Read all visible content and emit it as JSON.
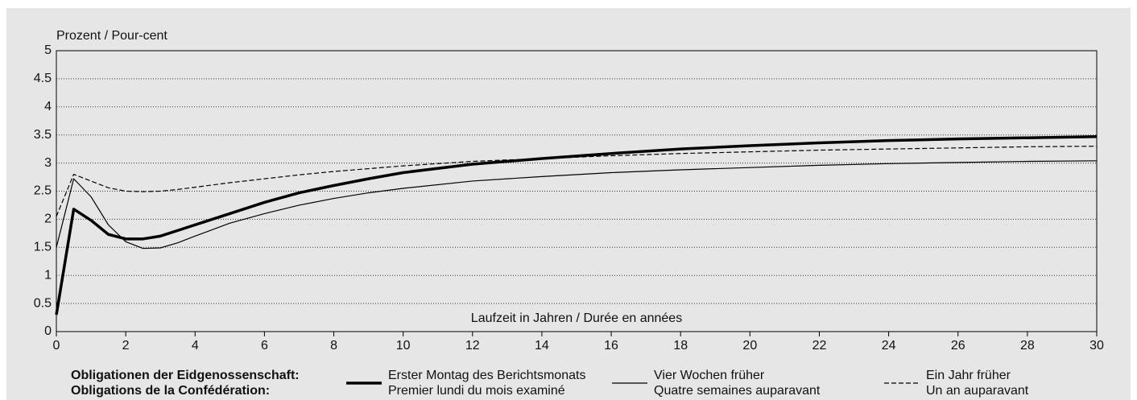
{
  "chart_data": {
    "type": "line",
    "ylabel": "Prozent / Pour-cent",
    "xlabel": "Laufzeit in Jahren / Durée en années",
    "xlim": [
      0,
      30
    ],
    "xticks": [
      0,
      2,
      4,
      6,
      8,
      10,
      12,
      14,
      16,
      18,
      20,
      22,
      24,
      26,
      28,
      30
    ],
    "ylim": [
      0,
      5
    ],
    "yticks": [
      0,
      0.5,
      1,
      1.5,
      2,
      2.5,
      3,
      3.5,
      4,
      4.5,
      5
    ],
    "grid": true,
    "legend_title": [
      "Obligationen der Eidgenossenschaft:",
      "Obligations de la Confédération:"
    ],
    "x": [
      0,
      0.5,
      1,
      1.5,
      2,
      2.5,
      3,
      3.5,
      4,
      5,
      6,
      7,
      8,
      9,
      10,
      12,
      14,
      16,
      18,
      20,
      22,
      24,
      26,
      28,
      30
    ],
    "series": [
      {
        "name": [
          "Erster Montag des Berichtsmonats",
          "Premier lundi du mois examiné"
        ],
        "color": "#000000",
        "linewidth": 3.5,
        "dashed": false,
        "values": [
          0.3,
          2.18,
          1.98,
          1.73,
          1.65,
          1.65,
          1.7,
          1.8,
          1.9,
          2.1,
          2.3,
          2.47,
          2.6,
          2.72,
          2.83,
          2.98,
          3.08,
          3.17,
          3.25,
          3.31,
          3.36,
          3.4,
          3.43,
          3.45,
          3.47
        ]
      },
      {
        "name": [
          "Vier Wochen früher",
          "Quatre semaines auparavant"
        ],
        "color": "#000000",
        "linewidth": 1.2,
        "dashed": false,
        "values": [
          1.5,
          2.72,
          2.4,
          1.9,
          1.6,
          1.48,
          1.49,
          1.58,
          1.7,
          1.93,
          2.1,
          2.25,
          2.37,
          2.47,
          2.55,
          2.68,
          2.76,
          2.83,
          2.88,
          2.92,
          2.96,
          2.99,
          3.01,
          3.03,
          3.04
        ]
      },
      {
        "name": [
          "Ein Jahr früher",
          "Un an auparavant"
        ],
        "color": "#000000",
        "linewidth": 1.2,
        "dashed": true,
        "values": [
          2.05,
          2.8,
          2.68,
          2.56,
          2.5,
          2.49,
          2.5,
          2.53,
          2.57,
          2.65,
          2.72,
          2.79,
          2.85,
          2.9,
          2.95,
          3.03,
          3.08,
          3.13,
          3.17,
          3.2,
          3.23,
          3.25,
          3.27,
          3.29,
          3.3
        ]
      }
    ]
  }
}
